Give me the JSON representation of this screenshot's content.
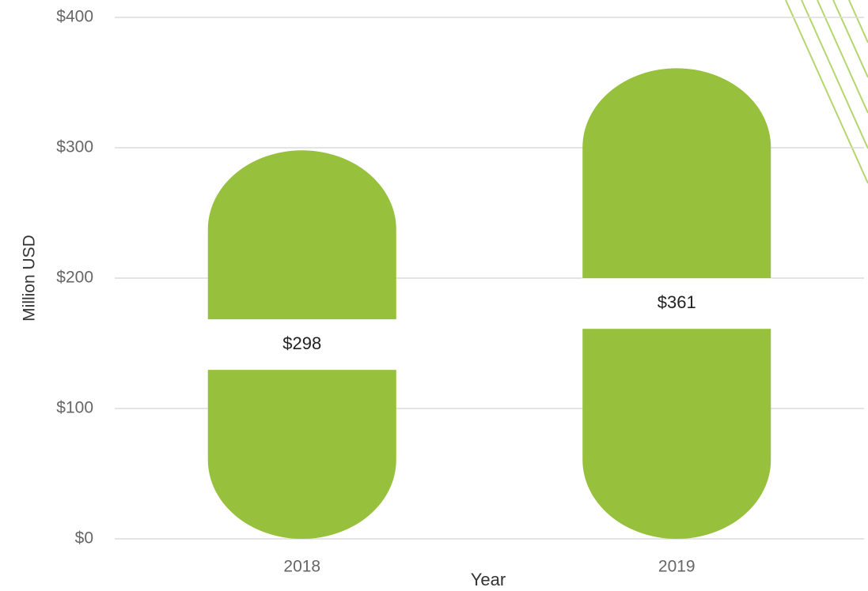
{
  "chart_data": {
    "type": "bar",
    "categories": [
      "2018",
      "2019"
    ],
    "values": [
      298,
      361
    ],
    "value_labels": [
      "$298",
      "$361"
    ],
    "color": "#97c03d",
    "ylim": [
      0,
      400
    ],
    "yticks": [
      {
        "value": 0,
        "label": "$0"
      },
      {
        "value": 100,
        "label": "$100"
      },
      {
        "value": 200,
        "label": "$200"
      },
      {
        "value": 300,
        "label": "$300"
      },
      {
        "value": 400,
        "label": "$400"
      }
    ],
    "grid": true,
    "xlabel": "Year",
    "ylabel": "Million USD"
  }
}
